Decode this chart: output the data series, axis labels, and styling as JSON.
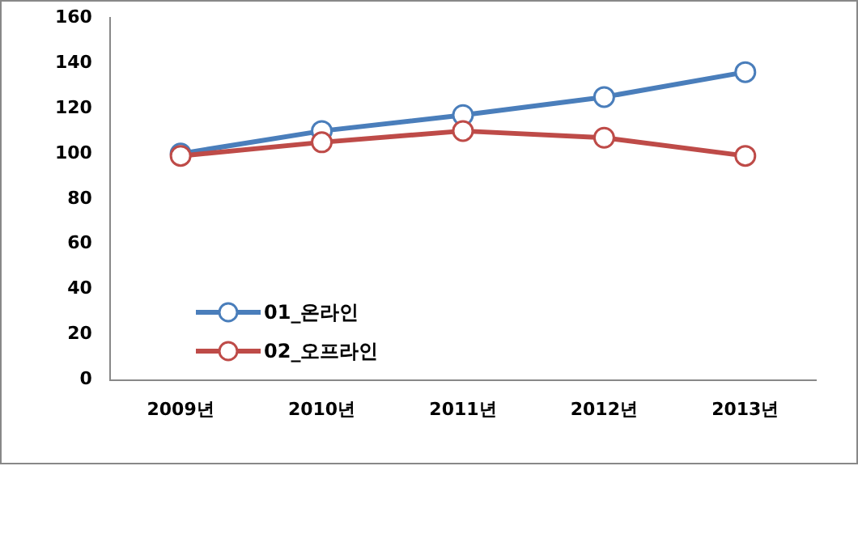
{
  "chart_data": {
    "type": "line",
    "categories": [
      "2009년",
      "2010년",
      "2011년",
      "2012년",
      "2013년"
    ],
    "series": [
      {
        "name": "01_온라인",
        "color": "#4a7ebb",
        "values": [
          100,
          110,
          117,
          125,
          136
        ]
      },
      {
        "name": "02_오프라인",
        "color": "#be4b48",
        "values": [
          99,
          105,
          110,
          107,
          99
        ]
      }
    ],
    "ylim": [
      0,
      160
    ],
    "yticks": [
      0,
      20,
      40,
      60,
      80,
      100,
      120,
      140,
      160
    ],
    "grid": false,
    "legend": "bottom left",
    "marker": "circle",
    "line_style": "solid"
  }
}
